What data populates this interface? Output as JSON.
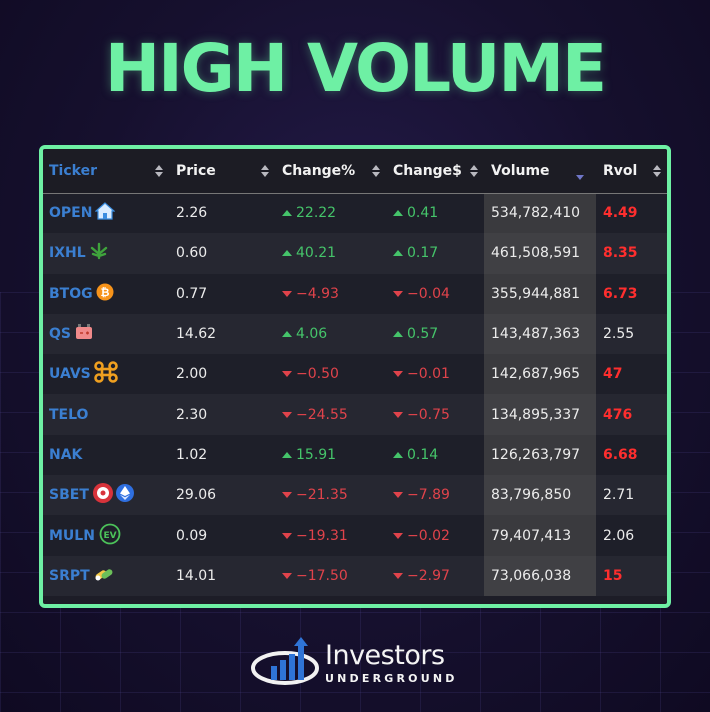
{
  "title": "HIGH VOLUME",
  "colors": {
    "accent": "#6ef0a4",
    "ticker": "#3b7fd1",
    "up": "#45c46a",
    "down": "#e0434b",
    "rvol_high": "#ff2e2e"
  },
  "table": {
    "headers": {
      "ticker": "Ticker",
      "price": "Price",
      "change_pct": "Change%",
      "change_usd": "Change$",
      "volume": "Volume",
      "rvol": "Rvol"
    },
    "rows": [
      {
        "ticker": "OPEN",
        "icon": "house-icon",
        "price": "2.26",
        "change_pct": "22.22",
        "change_usd": "0.41",
        "direction": "up",
        "volume": "534,782,410",
        "rvol": "4.49",
        "rvol_high": true
      },
      {
        "ticker": "IXHL",
        "icon": "cannabis-leaf-icon",
        "price": "0.60",
        "change_pct": "40.21",
        "change_usd": "0.17",
        "direction": "up",
        "volume": "461,508,591",
        "rvol": "8.35",
        "rvol_high": true
      },
      {
        "ticker": "BTOG",
        "icon": "bitcoin-icon",
        "price": "0.77",
        "change_pct": "-4.93",
        "change_usd": "-0.04",
        "direction": "down",
        "volume": "355,944,881",
        "rvol": "6.73",
        "rvol_high": true
      },
      {
        "ticker": "QS",
        "icon": "battery-icon",
        "price": "14.62",
        "change_pct": "4.06",
        "change_usd": "0.57",
        "direction": "up",
        "volume": "143,487,363",
        "rvol": "2.55",
        "rvol_high": false
      },
      {
        "ticker": "UAVS",
        "icon": "drone-icon",
        "price": "2.00",
        "change_pct": "-0.50",
        "change_usd": "-0.01",
        "direction": "down",
        "volume": "142,687,965",
        "rvol": "47",
        "rvol_high": true
      },
      {
        "ticker": "TELO",
        "icon": "",
        "price": "2.30",
        "change_pct": "-24.55",
        "change_usd": "-0.75",
        "direction": "down",
        "volume": "134,895,337",
        "rvol": "476",
        "rvol_high": true
      },
      {
        "ticker": "NAK",
        "icon": "",
        "price": "1.02",
        "change_pct": "15.91",
        "change_usd": "0.14",
        "direction": "up",
        "volume": "126,263,797",
        "rvol": "6.68",
        "rvol_high": true
      },
      {
        "ticker": "SBET",
        "icon": "roulette-ethereum-icon",
        "price": "29.06",
        "change_pct": "-21.35",
        "change_usd": "-7.89",
        "direction": "down",
        "volume": "83,796,850",
        "rvol": "2.71",
        "rvol_high": false
      },
      {
        "ticker": "MULN",
        "icon": "ev-icon",
        "price": "0.09",
        "change_pct": "-19.31",
        "change_usd": "-0.02",
        "direction": "down",
        "volume": "79,407,413",
        "rvol": "2.06",
        "rvol_high": false
      },
      {
        "ticker": "SRPT",
        "icon": "pills-icon",
        "price": "14.01",
        "change_pct": "-17.50",
        "change_usd": "-2.97",
        "direction": "down",
        "volume": "73,066,038",
        "rvol": "15",
        "rvol_high": true
      }
    ]
  },
  "logo": {
    "main": "Investors",
    "sub": "UNDERGROUND"
  }
}
